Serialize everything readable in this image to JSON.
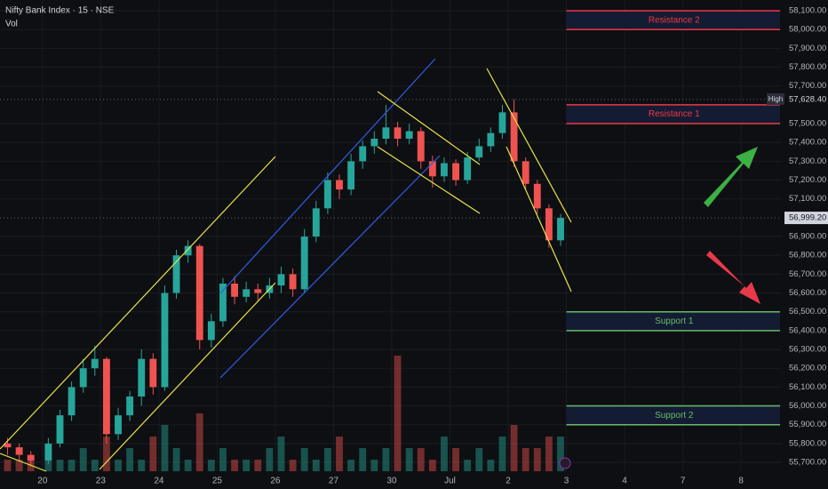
{
  "chart_data": {
    "type": "candlestick",
    "title": "Nifty Bank Index · 15 · NSE",
    "volume_label": "Vol",
    "xlim": [
      -0.73,
      12.7
    ],
    "ylim": [
      55653,
      58157
    ],
    "xticks": [
      {
        "value": 0,
        "label": "20"
      },
      {
        "value": 1,
        "label": "23"
      },
      {
        "value": 2,
        "label": "24"
      },
      {
        "value": 3,
        "label": "25"
      },
      {
        "value": 4,
        "label": "26"
      },
      {
        "value": 5,
        "label": "27"
      },
      {
        "value": 6,
        "label": "30"
      },
      {
        "value": 7,
        "label": "Jul"
      },
      {
        "value": 8,
        "label": "2"
      },
      {
        "value": 9,
        "label": "3"
      },
      {
        "value": 10,
        "label": "4"
      },
      {
        "value": 11,
        "label": "7"
      },
      {
        "value": 12,
        "label": "8"
      }
    ],
    "yticks": [
      {
        "value": 55700,
        "label": "55,700.00"
      },
      {
        "value": 55800,
        "label": "55,800.00"
      },
      {
        "value": 55900,
        "label": "55,900.00"
      },
      {
        "value": 56000,
        "label": "56,000.00"
      },
      {
        "value": 56100,
        "label": "56,100.00"
      },
      {
        "value": 56200,
        "label": "56,200.00"
      },
      {
        "value": 56300,
        "label": "56,300.00"
      },
      {
        "value": 56400,
        "label": "56,400.00"
      },
      {
        "value": 56500,
        "label": "56,500.00"
      },
      {
        "value": 56600,
        "label": "56,600.00"
      },
      {
        "value": 56700,
        "label": "56,700.00"
      },
      {
        "value": 56800,
        "label": "56,800.00"
      },
      {
        "value": 56900,
        "label": "56,900.00"
      },
      {
        "value": 57100,
        "label": "57,100.00"
      },
      {
        "value": 57200,
        "label": "57,200.00"
      },
      {
        "value": 57300,
        "label": "57,300.00"
      },
      {
        "value": 57400,
        "label": "57,400.00"
      },
      {
        "value": 57500,
        "label": "57,500.00"
      },
      {
        "value": 57700,
        "label": "57,700.00"
      },
      {
        "value": 57800,
        "label": "57,800.00"
      },
      {
        "value": 57900,
        "label": "57,900.00"
      },
      {
        "value": 58000,
        "label": "58,000.00"
      },
      {
        "value": 58100,
        "label": "58,100.00"
      }
    ],
    "grid": true,
    "up_color": "#26a69a",
    "down_color": "#ef5350",
    "x": [
      -0.6,
      -0.4,
      -0.2,
      0.1,
      0.3,
      0.5,
      0.7,
      0.9,
      1.1,
      1.3,
      1.5,
      1.7,
      1.9,
      2.1,
      2.3,
      2.5,
      2.7,
      2.9,
      3.1,
      3.3,
      3.5,
      3.7,
      3.9,
      4.1,
      4.3,
      4.5,
      4.7,
      4.9,
      5.1,
      5.3,
      5.5,
      5.7,
      5.9,
      6.1,
      6.3,
      6.5,
      6.7,
      6.9,
      7.1,
      7.3,
      7.5,
      7.7,
      7.9,
      8.1,
      8.3,
      8.5,
      8.7,
      8.9
    ],
    "open": [
      55800,
      55780,
      55740,
      55710,
      55800,
      55950,
      56100,
      56200,
      56250,
      55850,
      55950,
      56050,
      56250,
      56100,
      56600,
      56800,
      56850,
      56350,
      56450,
      56650,
      56580,
      56620,
      56600,
      56640,
      56700,
      56620,
      56900,
      57050,
      57200,
      57150,
      57300,
      57380,
      57420,
      57480,
      57420,
      57460,
      57300,
      57220,
      57290,
      57200,
      57320,
      57380,
      57450,
      57560,
      57300,
      57180,
      57050,
      56880
    ],
    "high": [
      55830,
      55800,
      55760,
      55830,
      55980,
      56130,
      56250,
      56320,
      56260,
      55990,
      56080,
      56300,
      56280,
      56640,
      56830,
      56880,
      56860,
      56490,
      56680,
      56690,
      56660,
      56650,
      56680,
      56740,
      56730,
      56940,
      57090,
      57240,
      57230,
      57340,
      57410,
      57460,
      57600,
      57510,
      57500,
      57480,
      57330,
      57320,
      57310,
      57350,
      57420,
      57480,
      57600,
      57628.4,
      57320,
      57200,
      57070,
      57020
    ],
    "low": [
      55740,
      55710,
      55680,
      55690,
      55780,
      55920,
      56070,
      56160,
      55800,
      55820,
      55920,
      56000,
      56060,
      56080,
      56570,
      56760,
      56300,
      56310,
      56420,
      56540,
      56550,
      56560,
      56570,
      56600,
      56580,
      56600,
      56870,
      57020,
      57100,
      57120,
      57260,
      57340,
      57390,
      57380,
      57390,
      57260,
      57160,
      57190,
      57170,
      57180,
      57300,
      57350,
      57420,
      57270,
      57150,
      57020,
      56840,
      56850
    ],
    "close": [
      55780,
      55740,
      55710,
      55800,
      55950,
      56100,
      56200,
      56250,
      55850,
      55950,
      56050,
      56250,
      56100,
      56600,
      56800,
      56850,
      56350,
      56450,
      56650,
      56580,
      56620,
      56600,
      56640,
      56700,
      56620,
      56900,
      57050,
      57200,
      57150,
      57300,
      57380,
      57420,
      57480,
      57420,
      57460,
      57300,
      57220,
      57290,
      57200,
      57320,
      57380,
      57450,
      57560,
      57300,
      57180,
      57050,
      56880,
      56999.2
    ],
    "volume": [
      1,
      1,
      1,
      2,
      1,
      1,
      2,
      1,
      3,
      1,
      2,
      1,
      3,
      4,
      2,
      1,
      5,
      1,
      2,
      1,
      1,
      1,
      2,
      3,
      1,
      2,
      1,
      2,
      3,
      1,
      2,
      1,
      2,
      10,
      2,
      2,
      1,
      3,
      2,
      1,
      2,
      1,
      3,
      4,
      2,
      2,
      3,
      3
    ],
    "high_marker": {
      "label": "High",
      "value": 57628.4,
      "value_label": "57,628.40"
    },
    "last_price": {
      "value": 56999.2,
      "value_label": "56,999.20"
    },
    "zones": [
      {
        "label": "Resistance 2",
        "low": 58000,
        "high": 58100,
        "color": "#f23645",
        "x_from": 9
      },
      {
        "label": "Resistance 1",
        "low": 57500,
        "high": 57600,
        "color": "#f23645",
        "x_from": 9
      },
      {
        "label": "Support 1",
        "low": 56400,
        "high": 56500,
        "color": "#66bb6a",
        "x_from": 9
      },
      {
        "label": "Support 2",
        "low": 55900,
        "high": 56000,
        "color": "#66bb6a",
        "x_from": 9
      }
    ]
  }
}
